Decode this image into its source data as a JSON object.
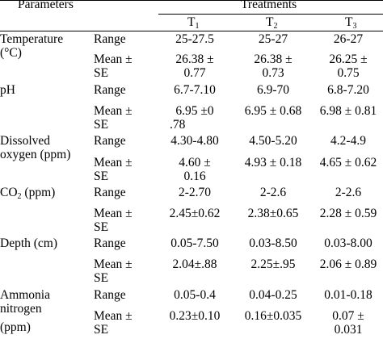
{
  "header": {
    "parameters": "Parameters",
    "treatments": "Treatments",
    "cols": [
      {
        "base": "T",
        "sub": "1"
      },
      {
        "base": "T",
        "sub": "2"
      },
      {
        "base": "T",
        "sub": "3"
      }
    ]
  },
  "rows": [
    {
      "param": [
        "Temperature",
        "(°C)"
      ],
      "range_label": "Range",
      "mean_label": [
        "Mean ±",
        "SE"
      ],
      "range": [
        "25-27.5",
        "25-27",
        "26-27"
      ],
      "mean": [
        [
          "26.38 ±",
          "0.77"
        ],
        [
          "26.38 ±",
          "0.73"
        ],
        [
          "26.25 ±",
          "0.75"
        ]
      ]
    },
    {
      "param": [
        "pH"
      ],
      "range_label": "Range",
      "mean_label": [
        "Mean ±",
        "SE"
      ],
      "range": [
        "6.7-7.10",
        "6.9-70",
        "6.8-7.20"
      ],
      "mean": [
        [
          "6.95 ±0",
          ".78"
        ],
        [
          "6.95 ± 0.68"
        ],
        [
          "6.98 ± 0.81"
        ]
      ]
    },
    {
      "param": [
        "Dissolved",
        "oxygen (ppm)"
      ],
      "range_label": "Range",
      "mean_label": [
        "Mean ±",
        "SE"
      ],
      "range": [
        "4.30-4.80",
        "4.50-5.20",
        "4.2-4.9"
      ],
      "mean": [
        [
          "4.60 ±",
          "0.16"
        ],
        [
          "4.93 ± 0.18"
        ],
        [
          "4.65 ± 0.62"
        ]
      ]
    },
    {
      "param": [
        "CO"
      ],
      "param_sub": "2",
      "param_unit": " (ppm)",
      "range_label": "Range",
      "mean_label": [
        "Mean ±",
        "SE"
      ],
      "range": [
        "2-2.70",
        "2-2.6",
        "2-2.6"
      ],
      "mean": [
        [
          "2.45±0.62"
        ],
        [
          "2.38±0.65"
        ],
        [
          "2.28 ± 0.59"
        ]
      ]
    },
    {
      "param": [
        "Depth (cm)"
      ],
      "range_label": "Range",
      "mean_label": [
        "Mean ±",
        "SE"
      ],
      "range": [
        "0.05-7.50",
        "0.03-8.50",
        "0.03-8.00"
      ],
      "mean": [
        [
          "2.04±.88"
        ],
        [
          "2.25±.95"
        ],
        [
          "2.06 ± 0.89"
        ]
      ]
    },
    {
      "param": [
        "Ammonia",
        "nitrogen",
        "(ppm)"
      ],
      "range_label": "Range",
      "mean_label": [
        "Mean ±",
        "SE"
      ],
      "range": [
        "0.05-0.4",
        "0.04-0.25",
        "0.01-0.18"
      ],
      "mean": [
        [
          "0.23±0.10"
        ],
        [
          "0.16±0.035"
        ],
        [
          "0.07 ±",
          "0.031"
        ]
      ]
    }
  ]
}
